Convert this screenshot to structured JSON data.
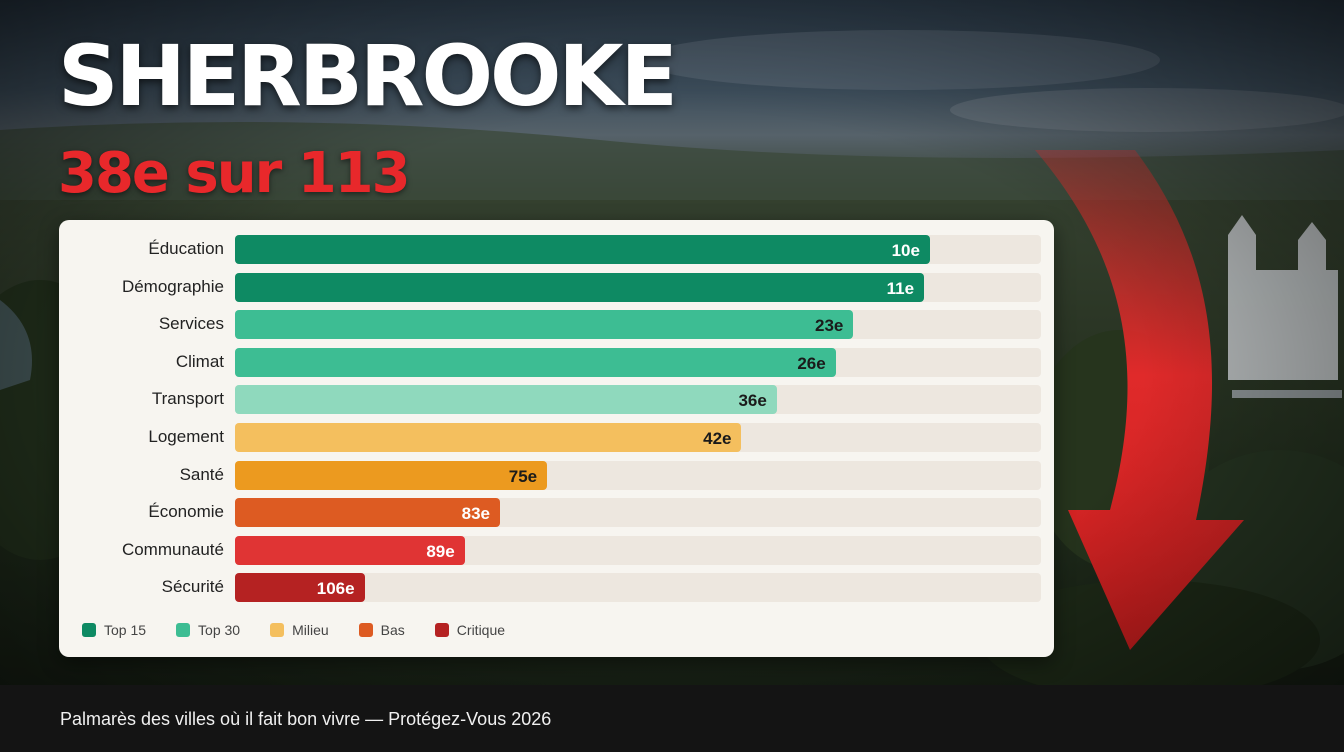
{
  "header": {
    "title": "SHERBROOKE",
    "subtitle": "38e sur 113"
  },
  "chart_data": {
    "type": "bar",
    "orientation": "horizontal",
    "value_kind": "rank",
    "max_rank": 113,
    "categories": [
      "Éducation",
      "Démographie",
      "Services",
      "Climat",
      "Transport",
      "Logement",
      "Santé",
      "Économie",
      "Communauté",
      "Sécurité"
    ],
    "values": [
      10,
      11,
      23,
      26,
      36,
      42,
      75,
      83,
      89,
      106
    ],
    "value_labels": [
      "10e",
      "11e",
      "23e",
      "26e",
      "36e",
      "42e",
      "75e",
      "83e",
      "89e",
      "106e"
    ],
    "bar_colors": [
      "#0e8a63",
      "#0e8a63",
      "#3dbd93",
      "#3dbd93",
      "#8fd9bd",
      "#f4bf5e",
      "#ec9a1f",
      "#dd5b22",
      "#e03434",
      "#b52222"
    ],
    "value_text_colors": [
      "#ffffff",
      "#ffffff",
      "#1a1a1a",
      "#1a1a1a",
      "#1a1a1a",
      "#1a1a1a",
      "#1a1a1a",
      "#ffffff",
      "#ffffff",
      "#ffffff"
    ],
    "legend": [
      {
        "label": "Top 15",
        "color": "#0e8a63"
      },
      {
        "label": "Top 30",
        "color": "#3dbd93"
      },
      {
        "label": "Milieu",
        "color": "#f4bf5e"
      },
      {
        "label": "Bas",
        "color": "#dd5b22"
      },
      {
        "label": "Critique",
        "color": "#b52222"
      }
    ],
    "legend_position": "bottom-left",
    "grid": false
  },
  "footer": {
    "caption": "Palmarès des villes où il fait bon vivre — Protégez-Vous 2026"
  },
  "decor": {
    "arrow_color": "#e02a2a",
    "arrow_icon": "down-arrow-icon"
  }
}
